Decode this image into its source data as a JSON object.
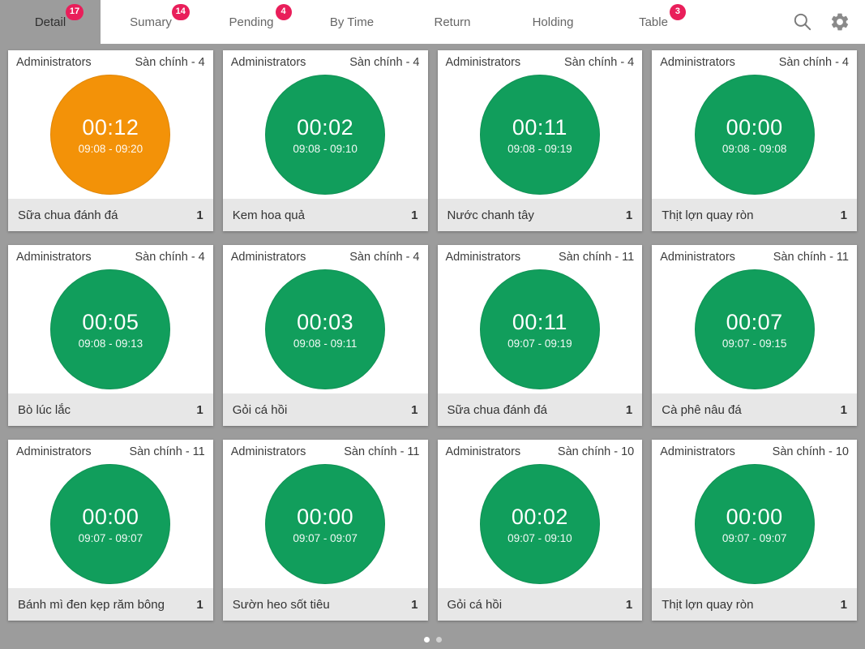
{
  "colors": {
    "background": "#9c9c9c",
    "circle_green": "#119e5c",
    "circle_orange": "#f39208",
    "badge": "#e91e5a",
    "footer_gray": "#e7e7e7"
  },
  "topbar": {
    "tabs": [
      {
        "label": "Detail",
        "badge": "17",
        "active": true
      },
      {
        "label": "Sumary",
        "badge": "14",
        "active": false
      },
      {
        "label": "Pending",
        "badge": "4",
        "active": false
      },
      {
        "label": "By Time",
        "active": false
      },
      {
        "label": "Return",
        "active": false
      },
      {
        "label": "Holding",
        "active": false
      },
      {
        "label": "Table",
        "badge": "3",
        "active": false
      }
    ],
    "icons": [
      "search-icon",
      "gear-icon"
    ]
  },
  "cards": [
    {
      "user": "Administrators",
      "table": "Sàn chính - 4",
      "timer": "00:12",
      "range": "09:08 - 09:20",
      "item": "Sữa chua đánh đá",
      "qty": "1",
      "state": "warning"
    },
    {
      "user": "Administrators",
      "table": "Sàn chính - 4",
      "timer": "00:02",
      "range": "09:08 - 09:10",
      "item": "Kem hoa quả",
      "qty": "1",
      "state": "normal"
    },
    {
      "user": "Administrators",
      "table": "Sàn chính - 4",
      "timer": "00:11",
      "range": "09:08 - 09:19",
      "item": "Nước chanh tây",
      "qty": "1",
      "state": "normal"
    },
    {
      "user": "Administrators",
      "table": "Sàn chính - 4",
      "timer": "00:00",
      "range": "09:08 - 09:08",
      "item": "Thịt lợn quay ròn",
      "qty": "1",
      "state": "normal"
    },
    {
      "user": "Administrators",
      "table": "Sàn chính - 4",
      "timer": "00:05",
      "range": "09:08 - 09:13",
      "item": "Bò lúc lắc",
      "qty": "1",
      "state": "normal"
    },
    {
      "user": "Administrators",
      "table": "Sàn chính - 4",
      "timer": "00:03",
      "range": "09:08 - 09:11",
      "item": "Gỏi cá hồi",
      "qty": "1",
      "state": "normal"
    },
    {
      "user": "Administrators",
      "table": "Sàn chính - 11",
      "timer": "00:11",
      "range": "09:07 - 09:19",
      "item": "Sữa chua đánh đá",
      "qty": "1",
      "state": "normal"
    },
    {
      "user": "Administrators",
      "table": "Sàn chính - 11",
      "timer": "00:07",
      "range": "09:07 - 09:15",
      "item": "Cà phê nâu đá",
      "qty": "1",
      "state": "normal"
    },
    {
      "user": "Administrators",
      "table": "Sàn chính - 11",
      "timer": "00:00",
      "range": "09:07 - 09:07",
      "item": "Bánh mì đen kẹp răm bông",
      "qty": "1",
      "state": "normal"
    },
    {
      "user": "Administrators",
      "table": "Sàn chính - 11",
      "timer": "00:00",
      "range": "09:07 - 09:07",
      "item": "Sườn heo sốt tiêu",
      "qty": "1",
      "state": "normal"
    },
    {
      "user": "Administrators",
      "table": "Sàn chính - 10",
      "timer": "00:02",
      "range": "09:07 - 09:10",
      "item": "Gỏi cá hồi",
      "qty": "1",
      "state": "normal"
    },
    {
      "user": "Administrators",
      "table": "Sàn chính - 10",
      "timer": "00:00",
      "range": "09:07 - 09:07",
      "item": "Thịt lợn quay ròn",
      "qty": "1",
      "state": "normal"
    }
  ],
  "pager": {
    "dots": 2,
    "active_index": 0
  }
}
